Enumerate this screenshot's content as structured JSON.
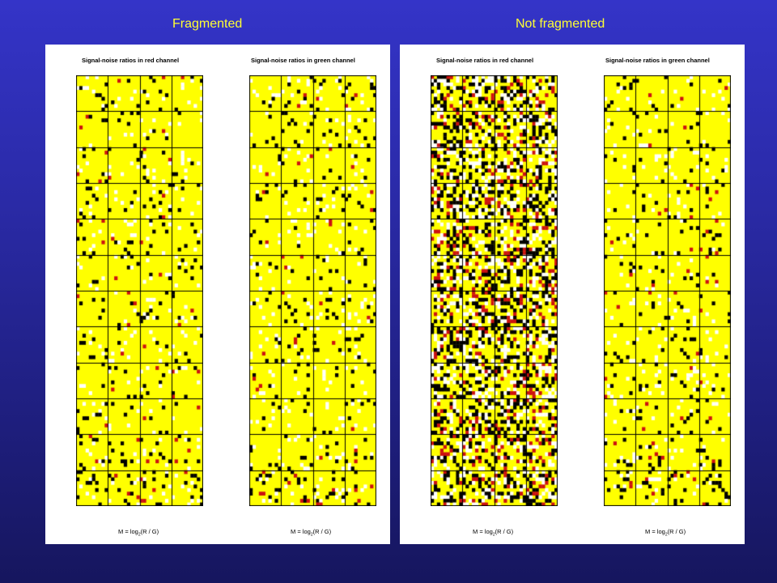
{
  "slide": {
    "left_title": "Fragmented",
    "right_title": "Not fragmented"
  },
  "panels": [
    {
      "red_channel": {
        "title": "Signal-noise ratios in red channel",
        "formula_prefix": "M = log",
        "formula_sub": "2",
        "formula_suffix": "(R / G)",
        "density": "sparse"
      },
      "green_channel": {
        "title": "Signal-noise ratios in green channel",
        "formula_prefix": "M = log",
        "formula_sub": "2",
        "formula_suffix": "(R / G)",
        "density": "sparse"
      }
    },
    {
      "red_channel": {
        "title": "Signal-noise ratios in red channel",
        "formula_prefix": "M = log",
        "formula_sub": "2",
        "formula_suffix": "(R / G)",
        "density": "dense"
      },
      "green_channel": {
        "title": "Signal-noise ratios in green channel",
        "formula_prefix": "M = log",
        "formula_sub": "2",
        "formula_suffix": "(R / G)",
        "density": "sparse"
      }
    }
  ],
  "colors": {
    "background_top": "#3434c8",
    "background_bottom": "#16165e",
    "title_text": "#ffff33",
    "heatmap_base": "#ffff00",
    "heatmap_dark": "#000000",
    "heatmap_red": "#cc1111"
  },
  "grid": {
    "block_rows": 12,
    "block_cols": 4,
    "spots_per_block": 10
  }
}
